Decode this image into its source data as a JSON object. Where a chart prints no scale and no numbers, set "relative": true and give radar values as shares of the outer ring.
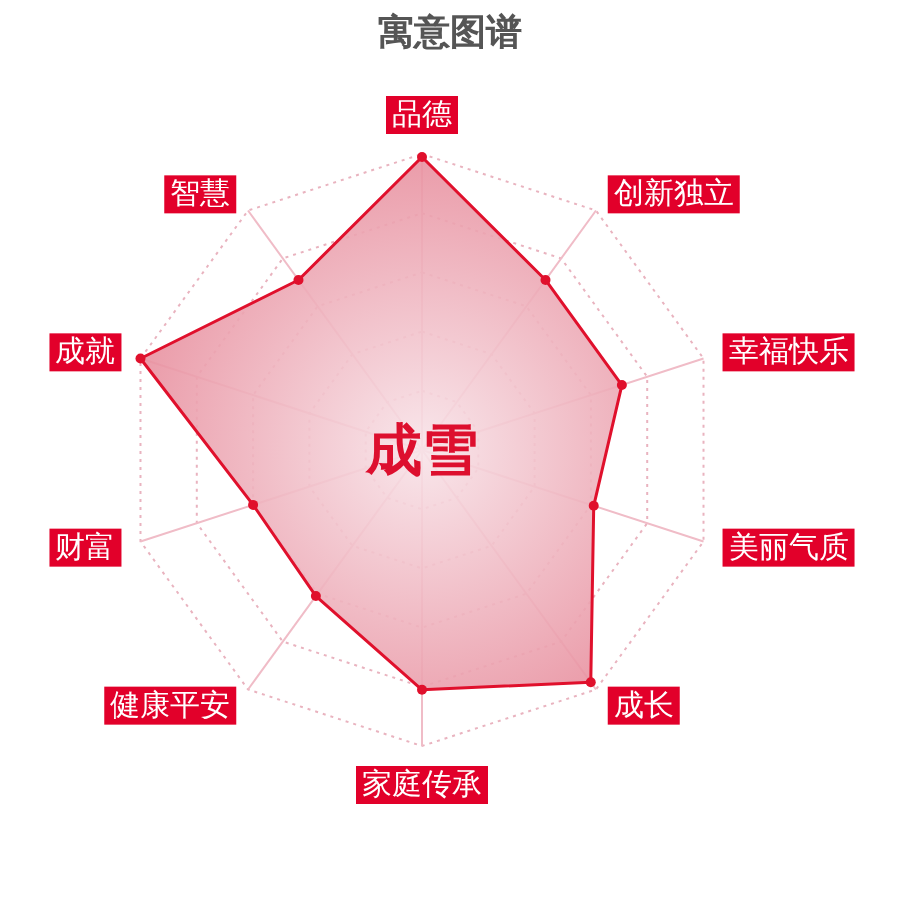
{
  "chart_data": {
    "type": "radar",
    "title": "寓意图谱",
    "categories": [
      "品德",
      "创新独立",
      "幸福快乐",
      "美丽气质",
      "成长",
      "家庭传承",
      "健康平安",
      "财富",
      "成就",
      "智慧"
    ],
    "relative": true,
    "grid": true,
    "marker": "circle",
    "series": [
      {
        "color": "#e0102c",
        "values": [
          0.99,
          0.71,
          0.71,
          0.61,
          0.97,
          0.81,
          0.61,
          0.6,
          1.0,
          0.71
        ]
      }
    ],
    "annotations": [
      "成雪"
    ]
  }
}
